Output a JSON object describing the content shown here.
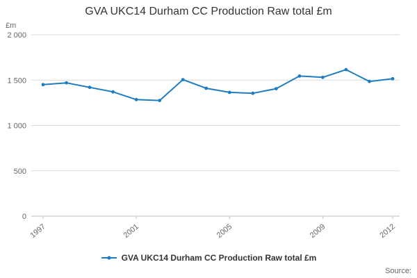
{
  "title": "GVA UKC14 Durham CC Production Raw total £m",
  "y_unit_label": "£m",
  "source_label": "Source:",
  "legend": {
    "label": "GVA UKC14 Durham CC Production Raw total £m"
  },
  "colors": {
    "line": "#1e7cc0",
    "grid": "#d9d9d9",
    "axis": "#bfbfbf",
    "tick_text": "#666666",
    "title_text": "#333333"
  },
  "chart_data": {
    "type": "line",
    "title": "GVA UKC14 Durham CC Production Raw total £m",
    "xlabel": "",
    "ylabel": "£m",
    "x": [
      1997,
      1998,
      1999,
      2000,
      2001,
      2002,
      2003,
      2004,
      2005,
      2006,
      2007,
      2008,
      2009,
      2010,
      2011,
      2012
    ],
    "series": [
      {
        "name": "GVA UKC14 Durham CC Production Raw total £m",
        "values": [
          1450,
          1470,
          1420,
          1370,
          1285,
          1275,
          1505,
          1410,
          1365,
          1355,
          1405,
          1545,
          1530,
          1615,
          1485,
          1515
        ]
      }
    ],
    "ylim": [
      0,
      2000
    ],
    "yticks": [
      0,
      500,
      1000,
      1500,
      2000
    ],
    "ytick_labels": [
      "0",
      "500",
      "1 000",
      "1 500",
      "2 000"
    ],
    "xticks_shown": [
      1997,
      2001,
      2005,
      2009,
      2012
    ],
    "grid": true,
    "legend_position": "bottom"
  }
}
